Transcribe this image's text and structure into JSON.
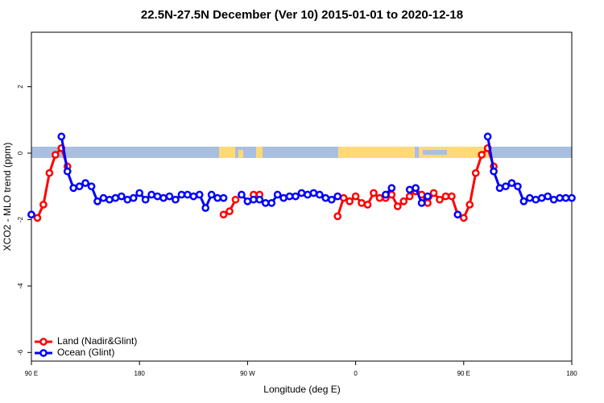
{
  "chart_data": {
    "type": "line",
    "title": "22.5N-27.5N December (Ver 10)   2015-01-01 to 2020-12-18",
    "x_label": "Longitude (deg E)",
    "y_label": "XCO2 - MLO trend (ppm)",
    "x": [
      90,
      95,
      100,
      105,
      110,
      115,
      120,
      125,
      130,
      135,
      140,
      145,
      150,
      155,
      160,
      165,
      170,
      175,
      180,
      185,
      190,
      195,
      200,
      205,
      210,
      215,
      220,
      225,
      230,
      235,
      240,
      245,
      250,
      255,
      260,
      265,
      270,
      275,
      280,
      285,
      290,
      295,
      300,
      305,
      310,
      315,
      320,
      325,
      330,
      335,
      340,
      345,
      350,
      355,
      360,
      365,
      370,
      375,
      380,
      385,
      390,
      395,
      400,
      405,
      410,
      415,
      420,
      425,
      430,
      435,
      440,
      445,
      450,
      455,
      460,
      465,
      470,
      475,
      480,
      485,
      490,
      495,
      500,
      505,
      510,
      515,
      520,
      525,
      530,
      535,
      540
    ],
    "series": [
      {
        "name": "Land (Nadir&Glint)",
        "color": "#ff0000",
        "values": [
          -1.85,
          -1.95,
          -1.55,
          -0.6,
          -0.05,
          0.15,
          -0.4,
          null,
          null,
          null,
          null,
          null,
          null,
          null,
          null,
          null,
          null,
          null,
          null,
          null,
          null,
          null,
          null,
          null,
          null,
          null,
          null,
          null,
          null,
          null,
          null,
          null,
          -1.85,
          -1.75,
          -1.4,
          null,
          null,
          -1.25,
          -1.25,
          null,
          null,
          null,
          null,
          null,
          null,
          null,
          null,
          null,
          null,
          null,
          null,
          -1.9,
          -1.35,
          -1.45,
          -1.3,
          -1.5,
          -1.55,
          -1.2,
          -1.35,
          -1.35,
          -1.25,
          -1.6,
          -1.45,
          -1.3,
          -1.15,
          -1.25,
          -1.5,
          -1.2,
          -1.4,
          -1.3,
          -1.3,
          -1.85,
          -1.95,
          -1.55,
          -0.6,
          -0.05,
          0.15,
          -0.4,
          null,
          null,
          null,
          null,
          null,
          null,
          null,
          null,
          null,
          null,
          null,
          null,
          null
        ]
      },
      {
        "name": "Ocean (Glint)",
        "color": "#0000ff",
        "values": [
          -1.85,
          null,
          null,
          null,
          null,
          0.5,
          -0.55,
          -1.05,
          -1.0,
          -0.9,
          -1.0,
          -1.45,
          -1.35,
          -1.4,
          -1.35,
          -1.3,
          -1.4,
          -1.35,
          -1.2,
          -1.4,
          -1.25,
          -1.3,
          -1.35,
          -1.3,
          -1.4,
          -1.25,
          -1.25,
          -1.3,
          -1.25,
          -1.65,
          -1.25,
          -1.35,
          -1.35,
          null,
          null,
          -1.25,
          -1.45,
          -1.4,
          -1.4,
          -1.5,
          -1.5,
          -1.25,
          -1.35,
          -1.3,
          -1.3,
          -1.2,
          -1.25,
          -1.2,
          -1.25,
          -1.35,
          -1.4,
          -1.3,
          null,
          null,
          null,
          null,
          null,
          null,
          null,
          -1.25,
          -1.05,
          null,
          null,
          -1.1,
          -1.05,
          -1.5,
          -1.3,
          null,
          null,
          null,
          null,
          -1.85,
          null,
          null,
          null,
          null,
          0.5,
          -0.55,
          -1.05,
          -1.0,
          -0.9,
          -1.0,
          -1.45,
          -1.35,
          -1.4,
          -1.35,
          -1.3,
          -1.4,
          -1.35,
          -1.35,
          -1.35
        ]
      }
    ],
    "xlim": [
      90,
      540
    ],
    "xticks": [
      {
        "value": 90,
        "label": "90 E"
      },
      180,
      {
        "value": 270,
        "label": "90 W"
      },
      {
        "value": 360,
        "label": "0"
      },
      {
        "value": 450,
        "label": "90 E"
      },
      {
        "value": 540,
        "label": "180"
      }
    ],
    "ylim": [
      -6.26,
      3.64
    ],
    "yticks": [
      -6,
      -4,
      -2,
      0,
      2
    ],
    "legend": "bottom-left"
  }
}
